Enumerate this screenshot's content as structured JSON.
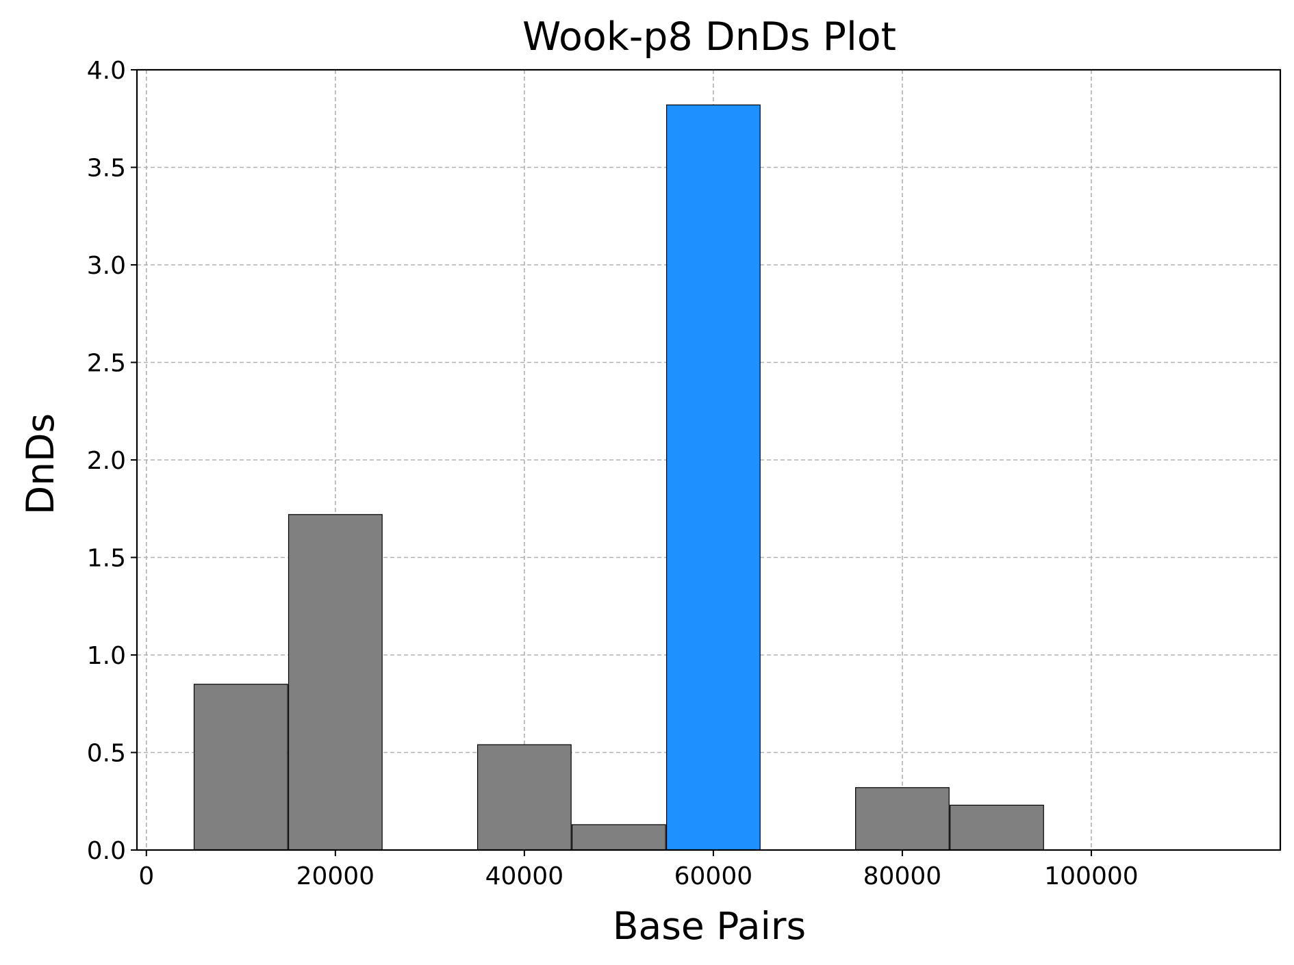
{
  "chart_data": {
    "type": "bar",
    "title": "Wook-p8 DnDs Plot",
    "xlabel": "Base Pairs",
    "ylabel": "DnDs",
    "xlim": [
      -1000,
      120000
    ],
    "ylim": [
      0,
      4.0
    ],
    "xticks": [
      0,
      20000,
      40000,
      60000,
      80000,
      100000
    ],
    "xtick_labels": [
      "0",
      "20000",
      "40000",
      "60000",
      "80000",
      "100000"
    ],
    "yticks": [
      0,
      0.5,
      1.0,
      1.5,
      2.0,
      2.5,
      3.0,
      3.5,
      4.0
    ],
    "ytick_labels": [
      "0.0",
      "0.5",
      "1.0",
      "1.5",
      "2.0",
      "2.5",
      "3.0",
      "3.5",
      "4.0"
    ],
    "grid": true,
    "bar_width": 9900,
    "bars": [
      {
        "x": 10000,
        "value": 0.85,
        "color": "#808080"
      },
      {
        "x": 20000,
        "value": 1.72,
        "color": "#808080"
      },
      {
        "x": 40000,
        "value": 0.54,
        "color": "#808080"
      },
      {
        "x": 50000,
        "value": 0.13,
        "color": "#808080"
      },
      {
        "x": 60000,
        "value": 3.82,
        "color": "#1e90ff"
      },
      {
        "x": 80000,
        "value": 0.32,
        "color": "#808080"
      },
      {
        "x": 90000,
        "value": 0.23,
        "color": "#808080"
      }
    ]
  }
}
